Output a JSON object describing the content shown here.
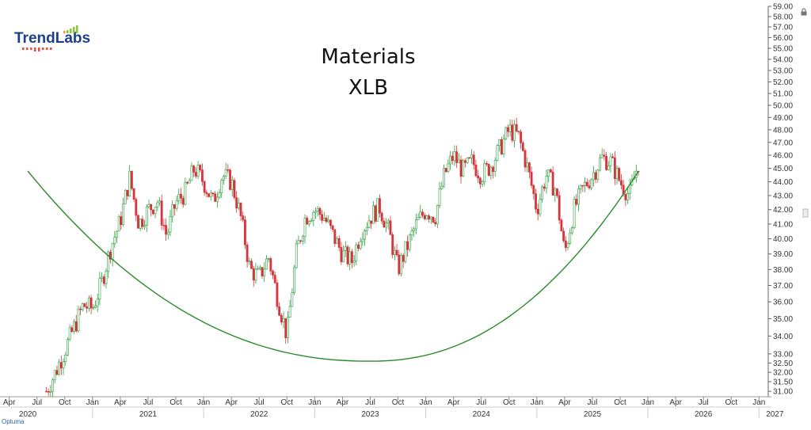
{
  "logo": {
    "text": "TrendLabs",
    "bar_colors": [
      "#f39c12",
      "#8cc63f",
      "#8cc63f",
      "#8cc63f",
      "#8cc63f"
    ],
    "dot_color": "#e74c3c"
  },
  "title": {
    "line1": "Materials",
    "line2": "XLB"
  },
  "source": "Optuma",
  "icons": {
    "lock": "lock-icon"
  },
  "colors": {
    "up_candle": "#2e9e3f",
    "down_candle": "#d9333b",
    "arc": "#2a8a2a",
    "grid": "#e6e6e6",
    "axis": "#555555"
  },
  "chart_data": {
    "type": "candlestick",
    "ticker": "XLB",
    "title": "Materials",
    "y_axis": {
      "scale": "log",
      "ticks": [
        31.0,
        31.5,
        32.0,
        32.5,
        33.0,
        34.0,
        35.0,
        36.0,
        37.0,
        38.0,
        39.0,
        40.0,
        41.0,
        42.0,
        43.0,
        44.0,
        45.0,
        46.0,
        47.0,
        48.0,
        49.0,
        50.0,
        51.0,
        52.0,
        53.0,
        54.0,
        55.0,
        56.0,
        57.0,
        58.0,
        59.0
      ],
      "ylim": [
        30.8,
        59.0
      ],
      "position": "right"
    },
    "x_axis": {
      "month_ticks": [
        "Apr",
        "Jul",
        "Oct",
        "Jan",
        "Apr",
        "Jul",
        "Oct",
        "Jan",
        "Apr",
        "Jul",
        "Oct",
        "Jan",
        "Apr",
        "Jul",
        "Oct",
        "Jan",
        "Apr",
        "Jul",
        "Oct",
        "Jan",
        "Apr",
        "Jul",
        "Oct",
        "Jan",
        "Apr",
        "Jul",
        "Oct",
        "Jan"
      ],
      "month_dates": [
        "2020-04",
        "2020-07",
        "2020-10",
        "2021-01",
        "2021-04",
        "2021-07",
        "2021-10",
        "2022-01",
        "2022-04",
        "2022-07",
        "2022-10",
        "2023-01",
        "2023-04",
        "2023-07",
        "2023-10",
        "2024-01",
        "2024-04",
        "2024-07",
        "2024-10",
        "2025-01",
        "2025-04",
        "2025-07",
        "2025-10",
        "2026-01",
        "2026-04",
        "2026-07",
        "2026-10",
        "2027-01"
      ],
      "years": [
        "2020",
        "2021",
        "2022",
        "2023",
        "2024",
        "2025",
        "2026",
        "2027"
      ],
      "range": [
        "2020-03",
        "2027-02"
      ]
    },
    "price_path": [
      [
        "2020-08",
        31.0
      ],
      [
        "2020-09",
        32.0
      ],
      [
        "2020-10",
        33.2
      ],
      [
        "2020-11",
        34.5
      ],
      [
        "2020-12",
        35.8
      ],
      [
        "2021-01",
        35.6
      ],
      [
        "2021-02",
        37.2
      ],
      [
        "2021-03",
        39.5
      ],
      [
        "2021-04",
        41.2
      ],
      [
        "2021-05",
        44.3
      ],
      [
        "2021-06",
        41.0
      ],
      [
        "2021-07",
        42.0
      ],
      [
        "2021-08",
        42.6
      ],
      [
        "2021-09",
        40.2
      ],
      [
        "2021-10",
        42.5
      ],
      [
        "2021-11",
        43.2
      ],
      [
        "2021-12",
        45.0
      ],
      [
        "2022-01",
        44.0
      ],
      [
        "2022-02",
        42.5
      ],
      [
        "2022-03",
        44.5
      ],
      [
        "2022-04",
        44.0
      ],
      [
        "2022-05",
        41.5
      ],
      [
        "2022-06",
        38.0
      ],
      [
        "2022-07",
        37.5
      ],
      [
        "2022-08",
        38.8
      ],
      [
        "2022-09",
        36.2
      ],
      [
        "2022-10",
        34.0
      ],
      [
        "2022-11",
        39.0
      ],
      [
        "2022-12",
        41.5
      ],
      [
        "2023-01",
        42.0
      ],
      [
        "2023-02",
        41.5
      ],
      [
        "2023-03",
        40.2
      ],
      [
        "2023-04",
        39.0
      ],
      [
        "2023-05",
        38.5
      ],
      [
        "2023-06",
        40.5
      ],
      [
        "2023-07",
        41.5
      ],
      [
        "2023-08",
        42.2
      ],
      [
        "2023-09",
        40.5
      ],
      [
        "2023-10",
        38.0
      ],
      [
        "2023-11",
        39.5
      ],
      [
        "2023-12",
        41.0
      ],
      [
        "2024-01",
        42.0
      ],
      [
        "2024-02",
        41.5
      ],
      [
        "2024-03",
        44.5
      ],
      [
        "2024-04",
        46.0
      ],
      [
        "2024-05",
        44.8
      ],
      [
        "2024-06",
        45.5
      ],
      [
        "2024-07",
        44.5
      ],
      [
        "2024-08",
        45.2
      ],
      [
        "2024-09",
        46.5
      ],
      [
        "2024-10",
        48.0
      ],
      [
        "2024-11",
        47.5
      ],
      [
        "2024-12",
        45.0
      ],
      [
        "2025-01",
        42.0
      ],
      [
        "2025-02",
        44.5
      ],
      [
        "2025-03",
        43.5
      ],
      [
        "2025-04",
        39.0
      ],
      [
        "2025-05",
        42.0
      ],
      [
        "2025-06",
        43.5
      ],
      [
        "2025-07",
        44.5
      ],
      [
        "2025-08",
        45.8
      ],
      [
        "2025-09",
        45.5
      ],
      [
        "2025-10",
        44.0
      ],
      [
        "2025-11",
        43.0
      ],
      [
        "2025-12",
        45.5
      ]
    ],
    "annotation": {
      "type": "arc",
      "shape": "rounding bottom (cup)",
      "start": [
        "2020-06",
        44.8
      ],
      "bottom": [
        "2023-07",
        32.6
      ],
      "end": [
        "2025-12",
        44.8
      ]
    },
    "grid": false,
    "legend": "none"
  }
}
